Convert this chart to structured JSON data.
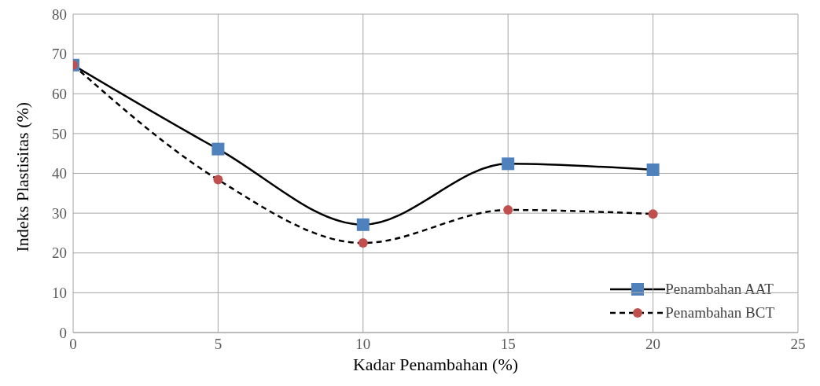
{
  "chart_data": {
    "type": "line",
    "xlabel": "Kadar Penambahan (%)",
    "ylabel": "Indeks Plastisitas (%)",
    "x": [
      0,
      5,
      10,
      15,
      20
    ],
    "series": [
      {
        "name": "Penambahan AAT",
        "color": "#000000",
        "values": [
          67.2,
          46.1,
          27.1,
          42.4,
          40.9
        ],
        "marker": "square",
        "line_style": "solid"
      },
      {
        "name": "Penambahan BCT",
        "color": "#000000",
        "values": [
          67.2,
          38.4,
          22.5,
          30.8,
          29.8
        ],
        "marker": "circle",
        "line_style": "dashed"
      }
    ],
    "xlim": [
      0,
      25
    ],
    "xticks": [
      0,
      5,
      10,
      15,
      20,
      25
    ],
    "ylim": [
      0,
      80
    ],
    "yticks": [
      0,
      10,
      20,
      30,
      40,
      50,
      60,
      70,
      80
    ],
    "grid": true,
    "legend": "bottom right"
  }
}
